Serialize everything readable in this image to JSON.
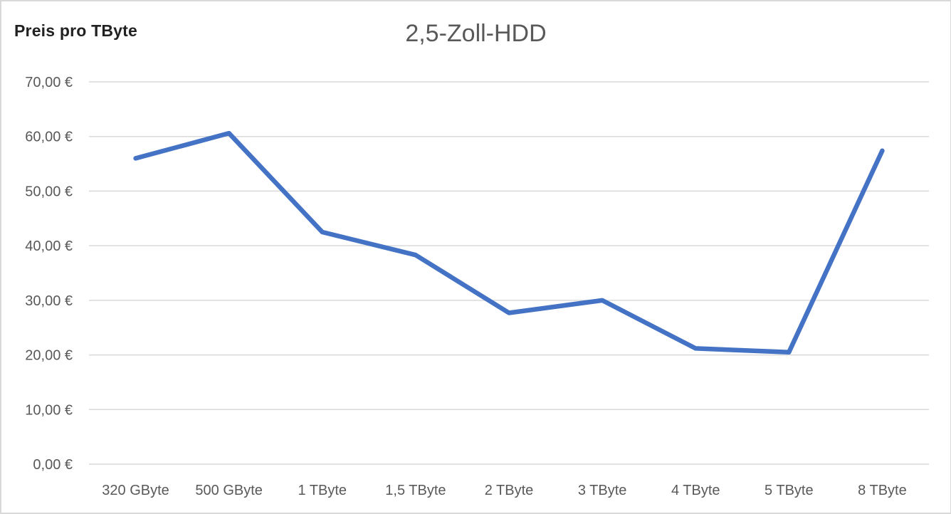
{
  "chart_data": {
    "type": "line",
    "title": "2,5-Zoll-HDD",
    "ylabel": "Preis pro TByte",
    "xlabel": "",
    "categories": [
      "320 GByte",
      "500 GByte",
      "1 TByte",
      "1,5 TByte",
      "2 TByte",
      "3 TByte",
      "4 TByte",
      "5 TByte",
      "8 TByte"
    ],
    "values": [
      56.0,
      60.6,
      42.5,
      38.3,
      27.7,
      30.0,
      21.2,
      20.5,
      57.4
    ],
    "ylim": [
      0,
      70
    ],
    "ytick_step": 10,
    "ytick_labels": [
      "0,00 €",
      "10,00 €",
      "20,00 €",
      "30,00 €",
      "40,00 €",
      "50,00 €",
      "60,00 €",
      "70,00 €"
    ],
    "grid": true,
    "legend": "none",
    "series_name": "2,5-Zoll-HDD",
    "line_color": "#4472C4",
    "gridline_color": "#D9D9D9",
    "tick_text_color": "#595959",
    "title_color": "#595959",
    "axis_title_color": "#212121",
    "border_color": "#D9D9D9"
  }
}
